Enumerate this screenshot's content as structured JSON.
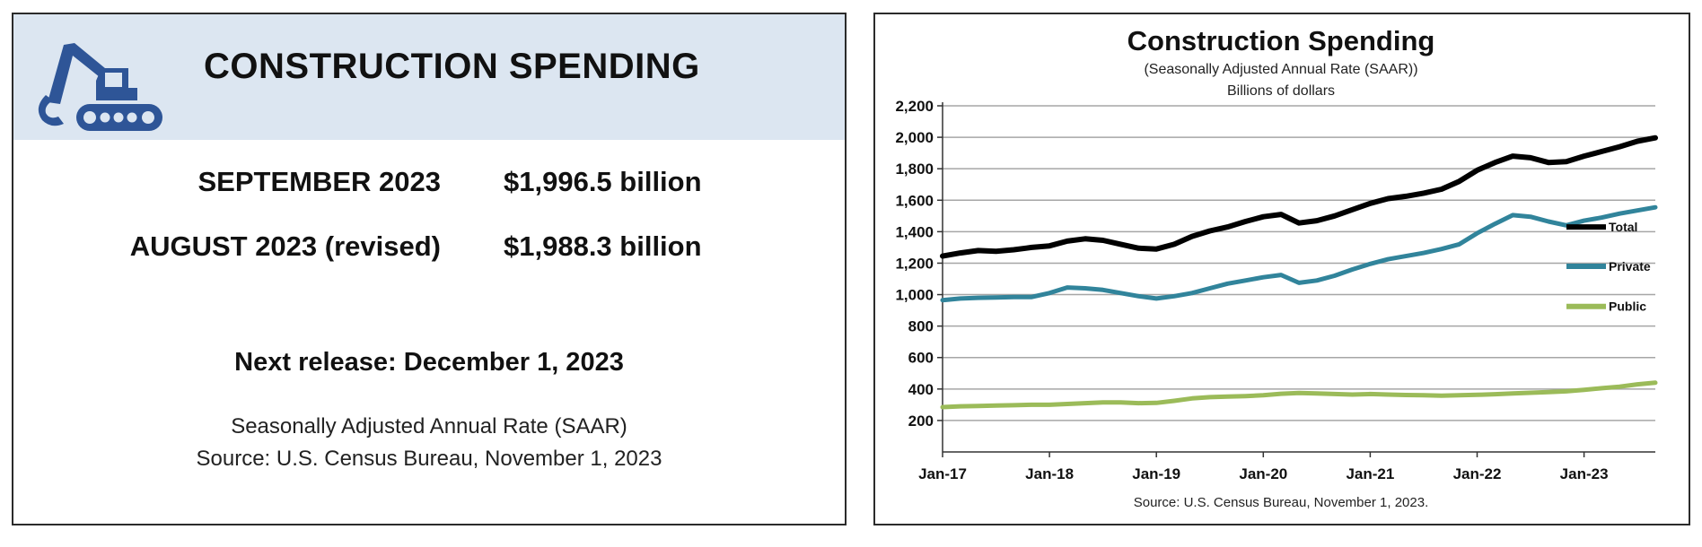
{
  "summary": {
    "title": "CONSTRUCTION SPENDING",
    "rows": [
      {
        "label": "SEPTEMBER 2023",
        "value": "$1,996.5 billion"
      },
      {
        "label": "AUGUST 2023 (revised)",
        "value": "$1,988.3 billion"
      }
    ],
    "next_release": "Next release: December 1, 2023",
    "footnote_1": "Seasonally Adjusted Annual Rate (SAAR)",
    "footnote_2": "Source: U.S. Census Bureau, November 1, 2023",
    "icon": "excavator-icon"
  },
  "colors": {
    "header_bg": "#dce6f1",
    "icon": "#2e5597",
    "total": "#000000",
    "private": "#31849b",
    "public": "#9bbb59",
    "gridline": "#a6a6a6"
  },
  "chart_data": {
    "type": "line",
    "title": "Construction Spending",
    "subtitle": "(Seasonally Adjusted Annual Rate (SAAR))",
    "ylabel": "Billions of dollars",
    "source": "Source: U.S. Census Bureau, November 1, 2023.",
    "ylim": [
      0,
      2200
    ],
    "yticks": [
      200,
      400,
      600,
      800,
      1000,
      1200,
      1400,
      1600,
      1800,
      2000,
      2200
    ],
    "ytick_labels": [
      "200",
      "400",
      "600",
      "800",
      "1,000",
      "1,200",
      "1,400",
      "1,600",
      "1,800",
      "2,000",
      "2,200"
    ],
    "xlim": [
      0,
      80
    ],
    "xticks": [
      0,
      12,
      24,
      36,
      48,
      60,
      72
    ],
    "xtick_labels": [
      "Jan-17",
      "Jan-18",
      "Jan-19",
      "Jan-20",
      "Jan-21",
      "Jan-22",
      "Jan-23"
    ],
    "legend": "right",
    "grid": true,
    "series": [
      {
        "name": "Total",
        "key": "total",
        "x": [
          0,
          2,
          4,
          6,
          8,
          10,
          12,
          14,
          16,
          18,
          20,
          22,
          24,
          26,
          28,
          30,
          32,
          34,
          36,
          38,
          40,
          42,
          44,
          46,
          48,
          50,
          52,
          54,
          56,
          58,
          60,
          62,
          64,
          66,
          68,
          70,
          72,
          74,
          76,
          78,
          80
        ],
        "values": [
          1245,
          1265,
          1280,
          1275,
          1285,
          1300,
          1310,
          1340,
          1355,
          1345,
          1320,
          1295,
          1290,
          1320,
          1370,
          1405,
          1430,
          1465,
          1495,
          1510,
          1455,
          1470,
          1500,
          1540,
          1580,
          1610,
          1625,
          1645,
          1670,
          1720,
          1790,
          1840,
          1880,
          1870,
          1840,
          1845,
          1880,
          1910,
          1940,
          1975,
          1996.5
        ]
      },
      {
        "name": "Private",
        "key": "private",
        "x": [
          0,
          2,
          4,
          6,
          8,
          10,
          12,
          14,
          16,
          18,
          20,
          22,
          24,
          26,
          28,
          30,
          32,
          34,
          36,
          38,
          40,
          42,
          44,
          46,
          48,
          50,
          52,
          54,
          56,
          58,
          60,
          62,
          64,
          66,
          68,
          70,
          72,
          74,
          76,
          78,
          80
        ],
        "values": [
          965,
          975,
          980,
          982,
          985,
          985,
          1010,
          1045,
          1040,
          1030,
          1010,
          990,
          975,
          990,
          1010,
          1040,
          1070,
          1090,
          1110,
          1125,
          1075,
          1090,
          1120,
          1160,
          1195,
          1225,
          1245,
          1265,
          1290,
          1320,
          1390,
          1450,
          1505,
          1495,
          1465,
          1440,
          1470,
          1490,
          1515,
          1535,
          1555
        ]
      },
      {
        "name": "Public",
        "key": "public",
        "x": [
          0,
          2,
          4,
          6,
          8,
          10,
          12,
          14,
          16,
          18,
          20,
          22,
          24,
          26,
          28,
          30,
          32,
          34,
          36,
          38,
          40,
          42,
          44,
          46,
          48,
          50,
          52,
          54,
          56,
          58,
          60,
          62,
          64,
          66,
          68,
          70,
          72,
          74,
          76,
          78,
          80
        ],
        "values": [
          285,
          290,
          292,
          295,
          297,
          300,
          300,
          305,
          310,
          315,
          315,
          310,
          312,
          325,
          340,
          348,
          352,
          355,
          360,
          370,
          375,
          372,
          368,
          365,
          368,
          365,
          362,
          360,
          358,
          360,
          363,
          367,
          372,
          376,
          380,
          385,
          395,
          405,
          415,
          430,
          440
        ]
      }
    ]
  }
}
